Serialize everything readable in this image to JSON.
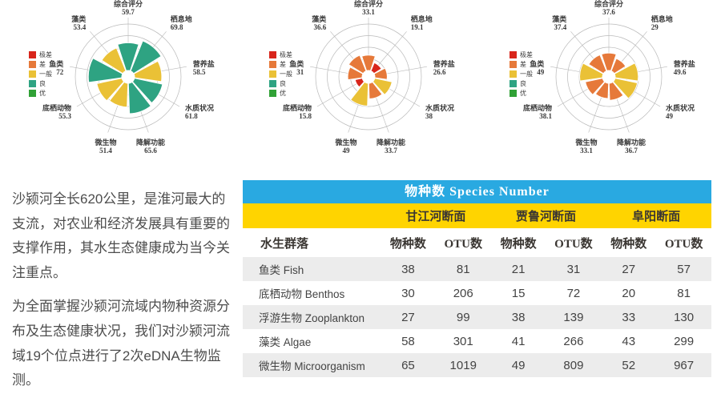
{
  "intro": {
    "paragraphs": [
      "沙颍河全长620公里，是淮河最大的支流，对农业和经济发展具有重要的支撑作用，其水生态健康成为当今关注重点。",
      "为全面掌握沙颍河流域内物种资源分布及生态健康状况，我们对沙颍河流域19个位点进行了2次eDNA生物监测。"
    ]
  },
  "legend": {
    "items": [
      {
        "label": "极差",
        "color": "#d8251b"
      },
      {
        "label": "差",
        "color": "#e6793a"
      },
      {
        "label": "一般",
        "color": "#eac136"
      },
      {
        "label": "良",
        "color": "#2ea382"
      },
      {
        "label": "优",
        "color": "#30a136"
      }
    ]
  },
  "grade_colors": {
    "极差": "#d8251b",
    "差": "#e6793a",
    "一般": "#eac136",
    "良": "#2ea382",
    "优": "#30a136"
  },
  "chart_data": [
    {
      "type": "rose",
      "title": "",
      "categories": [
        "综合评分",
        "栖息地",
        "营养盐",
        "水质状况",
        "降解功能",
        "微生物",
        "底栖动物",
        "鱼类",
        "藻类"
      ],
      "values": [
        59.7,
        69.8,
        58.5,
        61.8,
        65.6,
        51.4,
        55.3,
        72,
        53.4
      ],
      "grades": [
        "良",
        "良",
        "一般",
        "良",
        "良",
        "一般",
        "一般",
        "良",
        "一般"
      ],
      "rings": [
        25,
        50,
        75,
        100
      ],
      "rlim": [
        0,
        100
      ],
      "legend_position": "left"
    },
    {
      "type": "rose",
      "title": "",
      "categories": [
        "综合评分",
        "栖息地",
        "营养盐",
        "水质状况",
        "降解功能",
        "微生物",
        "底栖动物",
        "鱼类",
        "藻类"
      ],
      "values": [
        33.1,
        19.1,
        26.6,
        38,
        33.7,
        49,
        15.8,
        31,
        36.6
      ],
      "grades": [
        "差",
        "极差",
        "差",
        "一般",
        "差",
        "一般",
        "极差",
        "差",
        "差"
      ],
      "rings": [
        25,
        50,
        75,
        100
      ],
      "rlim": [
        0,
        100
      ],
      "legend_position": "left"
    },
    {
      "type": "rose",
      "title": "",
      "categories": [
        "综合评分",
        "栖息地",
        "营养盐",
        "水质状况",
        "降解功能",
        "微生物",
        "底栖动物",
        "鱼类",
        "藻类"
      ],
      "values": [
        37.6,
        29,
        49.6,
        49,
        36.7,
        33.1,
        38.1,
        49,
        37.4
      ],
      "grades": [
        "差",
        "差",
        "一般",
        "一般",
        "差",
        "差",
        "差",
        "一般",
        "差"
      ],
      "rings": [
        25,
        50,
        75,
        100
      ],
      "rlim": [
        0,
        100
      ],
      "legend_position": "left"
    }
  ],
  "table": {
    "title": "物种数  Species Number",
    "title_bg": "#29a9e1",
    "group_bg": "#ffd400",
    "groups": [
      "甘江河断面",
      "贾鲁河断面",
      "阜阳断面"
    ],
    "col_headers": [
      "水生群落",
      "物种数",
      "OTU数",
      "物种数",
      "OTU数",
      "物种数",
      "OTU数"
    ],
    "rows": [
      {
        "label": "鱼类 Fish",
        "values": [
          38,
          81,
          21,
          31,
          27,
          57
        ]
      },
      {
        "label": "底栖动物 Benthos",
        "values": [
          30,
          206,
          15,
          72,
          20,
          81
        ]
      },
      {
        "label": "浮游生物 Zooplankton",
        "values": [
          27,
          99,
          38,
          139,
          33,
          130
        ]
      },
      {
        "label": "藻类 Algae",
        "values": [
          58,
          301,
          41,
          266,
          43,
          299
        ]
      },
      {
        "label": "微生物 Microorganism",
        "values": [
          65,
          1019,
          49,
          809,
          52,
          967
        ]
      }
    ]
  }
}
